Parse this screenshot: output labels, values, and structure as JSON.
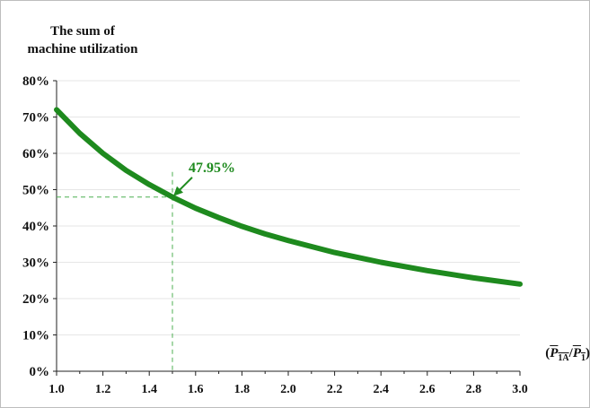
{
  "chart_data": {
    "type": "line",
    "title": [
      "The sum of",
      "machine utilization"
    ],
    "xlabel": "(P1A/P1)",
    "ylabel": "",
    "xlim": [
      1.0,
      3.0
    ],
    "ylim": [
      0,
      80
    ],
    "xticks": [
      "1.0",
      "1.2",
      "1.4",
      "1.6",
      "1.8",
      "2.0",
      "2.2",
      "2.4",
      "2.6",
      "2.8",
      "3.0"
    ],
    "yticks": [
      "0%",
      "10%",
      "20%",
      "30%",
      "40%",
      "50%",
      "60%",
      "70%",
      "80%"
    ],
    "grid": true,
    "series": [
      {
        "color": "#1e8a1e",
        "x": [
          1.0,
          1.1,
          1.2,
          1.3,
          1.4,
          1.5,
          1.6,
          1.7,
          1.8,
          1.9,
          2.0,
          2.2,
          2.4,
          2.6,
          2.8,
          3.0
        ],
        "y": [
          72.0,
          65.5,
          60.0,
          55.3,
          51.4,
          47.95,
          44.9,
          42.3,
          39.9,
          37.8,
          36.0,
          32.7,
          30.0,
          27.7,
          25.7,
          24.0
        ]
      }
    ],
    "annotation": {
      "label": "47.95%",
      "x": 1.5,
      "y": 47.95,
      "color": "#1e8a1e"
    }
  },
  "x_unit": {
    "open": "(",
    "p1a": "P",
    "p1a_sub": "1A",
    "slash": "/",
    "p1": "P",
    "p1_sub": "1",
    "close": ")"
  }
}
